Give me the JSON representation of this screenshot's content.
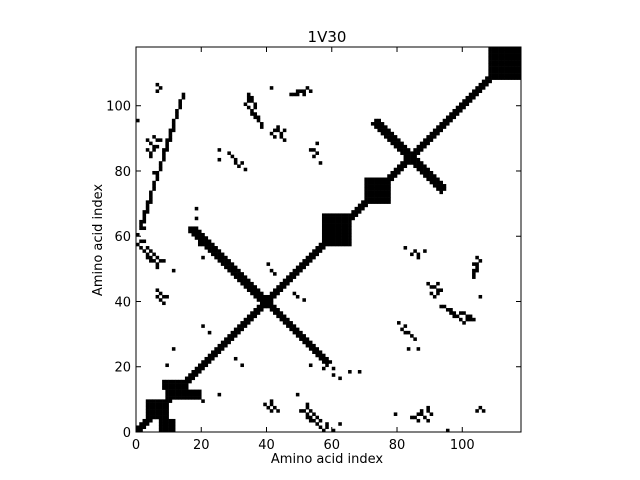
{
  "chart_data": {
    "type": "heatmap",
    "title": "1V30",
    "xlabel": "Amino acid index",
    "ylabel": "Amino acid index",
    "xlim": [
      0,
      118
    ],
    "ylim": [
      0,
      118
    ],
    "x_ticks": [
      0,
      20,
      40,
      60,
      80,
      100
    ],
    "y_ticks": [
      0,
      20,
      40,
      60,
      80,
      100
    ],
    "colors": {
      "contact": "#000000",
      "background": "#ffffff"
    },
    "grid": false,
    "legend": "none",
    "contact_bands": [
      {
        "kind": "main-diagonal",
        "from": 0,
        "to": 118,
        "halfwidth": 1.5
      },
      {
        "kind": "anti-diagonal",
        "x1": 17,
        "y1": 61,
        "x2": 58,
        "y2": 21,
        "halfwidth": 0.8
      },
      {
        "kind": "anti-diagonal",
        "x1": 73,
        "y1": 94,
        "x2": 93,
        "y2": 74,
        "halfwidth": 0.7
      },
      {
        "kind": "anti-diagonal",
        "x1": 14,
        "y1": 103,
        "x2": 1,
        "y2": 62,
        "halfwidth": 0.6
      }
    ],
    "contact_blocks": [
      {
        "x": 3,
        "y": 4,
        "w": 7,
        "h": 6
      },
      {
        "x": 7,
        "y": 0,
        "w": 5,
        "h": 4
      },
      {
        "x": 9,
        "y": 10,
        "w": 11,
        "h": 3
      },
      {
        "x": 8,
        "y": 13,
        "w": 8,
        "h": 3
      },
      {
        "x": 108,
        "y": 108,
        "w": 10,
        "h": 10
      },
      {
        "x": 57,
        "y": 57,
        "w": 9,
        "h": 10
      },
      {
        "x": 70,
        "y": 70,
        "w": 8,
        "h": 8
      }
    ],
    "contact_points": [
      [
        2,
        58
      ],
      [
        3,
        56
      ],
      [
        4,
        55
      ],
      [
        5,
        54
      ],
      [
        6,
        53
      ],
      [
        7,
        52
      ],
      [
        8,
        52
      ],
      [
        6,
        50
      ],
      [
        11,
        49
      ],
      [
        2,
        62
      ],
      [
        6,
        87
      ],
      [
        5,
        86
      ],
      [
        4,
        85
      ],
      [
        7,
        89
      ],
      [
        5,
        79
      ],
      [
        6,
        43
      ],
      [
        7,
        42
      ],
      [
        8,
        41
      ],
      [
        9,
        41
      ],
      [
        18,
        65
      ],
      [
        19,
        57
      ],
      [
        17,
        60
      ],
      [
        33,
        80
      ],
      [
        31,
        81
      ],
      [
        32,
        82
      ],
      [
        30,
        82
      ],
      [
        25,
        83
      ],
      [
        34,
        103
      ],
      [
        35,
        102
      ],
      [
        34,
        101
      ],
      [
        33,
        100
      ],
      [
        36,
        99
      ],
      [
        35,
        98
      ],
      [
        36,
        97
      ],
      [
        37,
        96
      ],
      [
        38,
        93
      ],
      [
        42,
        92
      ],
      [
        41,
        91
      ],
      [
        42,
        90
      ],
      [
        43,
        92
      ],
      [
        47,
        103
      ],
      [
        48,
        103
      ],
      [
        49,
        104
      ],
      [
        50,
        104
      ],
      [
        51,
        104
      ],
      [
        54,
        84
      ],
      [
        53,
        86
      ],
      [
        54,
        86
      ],
      [
        40,
        51
      ],
      [
        48,
        42
      ],
      [
        49,
        41
      ],
      [
        20,
        9
      ],
      [
        25,
        11
      ],
      [
        30,
        22
      ],
      [
        32,
        20
      ],
      [
        39,
        8
      ],
      [
        40,
        7
      ],
      [
        41,
        6
      ],
      [
        43,
        6
      ],
      [
        51,
        6
      ],
      [
        52,
        5
      ],
      [
        53,
        4
      ],
      [
        54,
        3
      ],
      [
        55,
        2
      ],
      [
        56,
        1
      ],
      [
        57,
        0
      ],
      [
        58,
        1
      ],
      [
        52,
        4
      ],
      [
        53,
        3
      ],
      [
        53,
        20
      ],
      [
        58,
        20
      ],
      [
        60,
        19
      ],
      [
        65,
        18
      ],
      [
        60,
        0
      ],
      [
        62,
        16
      ],
      [
        68,
        18
      ],
      [
        83,
        30
      ],
      [
        84,
        29
      ],
      [
        85,
        28
      ],
      [
        86,
        25
      ],
      [
        84,
        4
      ],
      [
        86,
        3
      ],
      [
        87,
        5
      ],
      [
        88,
        4
      ],
      [
        89,
        3
      ],
      [
        89,
        6
      ],
      [
        90,
        5
      ],
      [
        95,
        0
      ],
      [
        89,
        45
      ],
      [
        90,
        44
      ],
      [
        91,
        44
      ],
      [
        92,
        45
      ],
      [
        93,
        43
      ],
      [
        94,
        38
      ],
      [
        95,
        37
      ],
      [
        96,
        36
      ],
      [
        97,
        35
      ],
      [
        98,
        35
      ],
      [
        99,
        34
      ],
      [
        100,
        36
      ],
      [
        101,
        35
      ],
      [
        102,
        34
      ],
      [
        105,
        41
      ],
      [
        103,
        49
      ],
      [
        104,
        50
      ],
      [
        103,
        51
      ],
      [
        105,
        52
      ],
      [
        104,
        53
      ],
      [
        82,
        56
      ],
      [
        85,
        55
      ],
      [
        88,
        55
      ],
      [
        104,
        6
      ],
      [
        105,
        7
      ],
      [
        106,
        6
      ]
    ]
  }
}
